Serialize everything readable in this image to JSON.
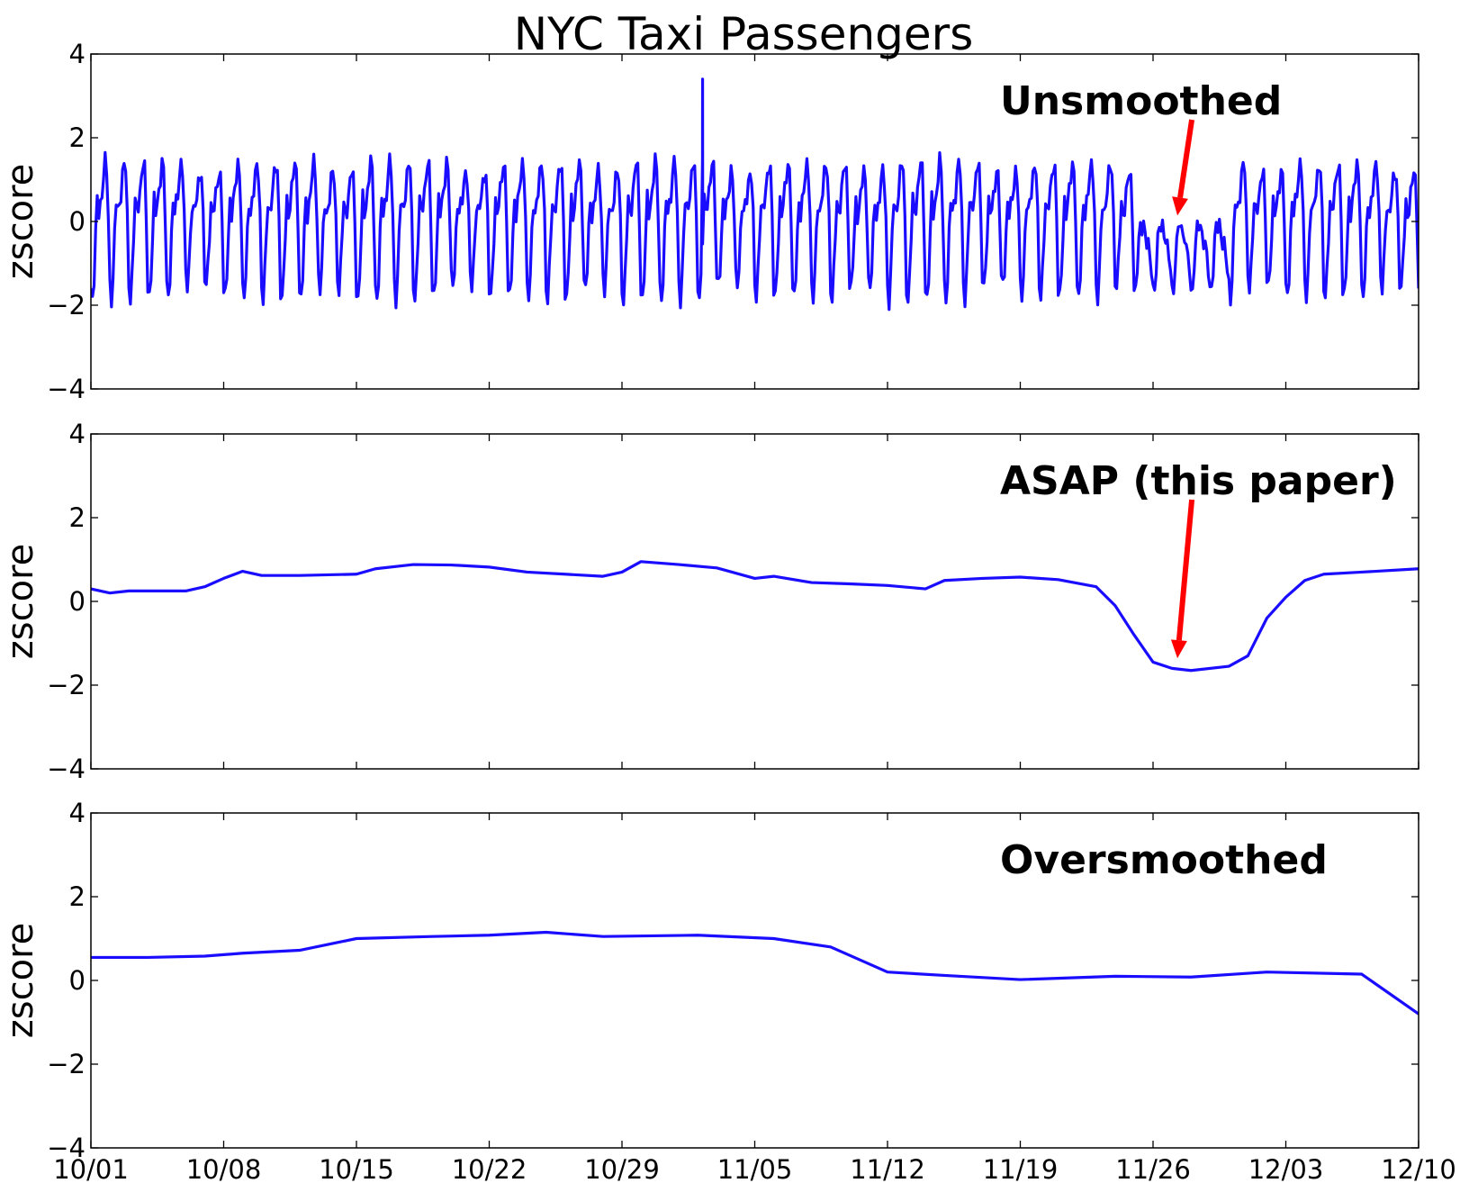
{
  "chart_data": {
    "type": "line",
    "title": "NYC Taxi Passengers",
    "x_ticks": [
      "10/01",
      "10/08",
      "10/15",
      "10/22",
      "10/29",
      "11/05",
      "11/12",
      "11/19",
      "11/26",
      "12/03",
      "12/10"
    ],
    "x_range": [
      "10/01",
      "12/10"
    ],
    "y_range": [
      -4,
      4
    ],
    "y_ticks": [
      "4",
      "2",
      "0",
      "−2",
      "−4"
    ],
    "colors": {
      "line": "#1a0dff",
      "arrow": "#ff0000"
    },
    "grid": false,
    "panels": [
      {
        "ylabel": "zscore",
        "annotation": "Unsmoothed",
        "arrow_target": {
          "x": "11/27",
          "y": 0.1
        },
        "series": {
          "kind": "daily-cycle",
          "x_start": "10/01",
          "x_end": "12/10",
          "points_per_day": 12,
          "daily_profile": [
            -1.6,
            -1.85,
            -1.3,
            -0.3,
            0.5,
            0.2,
            0.4,
            0.7,
            1.1,
            1.4,
            1.2,
            0.1
          ],
          "spike": {
            "x": "11/02 06:00",
            "y": 3.4
          },
          "dip_window": [
            "11/25",
            "11/30"
          ],
          "dip_values": [
            -1.55,
            -1.6,
            -1.2,
            -0.4,
            -0.1,
            -0.2,
            0.0,
            -0.3,
            -0.6,
            -0.5,
            -0.8,
            -1.2
          ]
        }
      },
      {
        "ylabel": "zscore",
        "annotation": "ASAP (this paper)",
        "arrow_target": {
          "x": "11/27",
          "y": -1.4
        },
        "series": {
          "kind": "smooth",
          "keypoints": [
            [
              "10/01",
              0.3
            ],
            [
              "10/02",
              0.2
            ],
            [
              "10/03",
              0.25
            ],
            [
              "10/06",
              0.25
            ],
            [
              "10/07",
              0.35
            ],
            [
              "10/08",
              0.55
            ],
            [
              "10/09",
              0.72
            ],
            [
              "10/10",
              0.62
            ],
            [
              "10/12",
              0.62
            ],
            [
              "10/15",
              0.65
            ],
            [
              "10/16",
              0.78
            ],
            [
              "10/18",
              0.88
            ],
            [
              "10/20",
              0.87
            ],
            [
              "10/22",
              0.82
            ],
            [
              "10/24",
              0.7
            ],
            [
              "10/26",
              0.65
            ],
            [
              "10/28",
              0.6
            ],
            [
              "10/29",
              0.7
            ],
            [
              "10/30",
              0.95
            ],
            [
              "11/01",
              0.88
            ],
            [
              "11/03",
              0.8
            ],
            [
              "11/05",
              0.55
            ],
            [
              "11/06",
              0.6
            ],
            [
              "11/08",
              0.45
            ],
            [
              "11/10",
              0.42
            ],
            [
              "11/12",
              0.38
            ],
            [
              "11/14",
              0.3
            ],
            [
              "11/15",
              0.5
            ],
            [
              "11/17",
              0.55
            ],
            [
              "11/19",
              0.58
            ],
            [
              "11/21",
              0.52
            ],
            [
              "11/23",
              0.35
            ],
            [
              "11/24",
              -0.1
            ],
            [
              "11/25",
              -0.8
            ],
            [
              "11/26",
              -1.45
            ],
            [
              "11/27",
              -1.6
            ],
            [
              "11/28",
              -1.65
            ],
            [
              "11/30",
              -1.55
            ],
            [
              "12/01",
              -1.3
            ],
            [
              "12/02",
              -0.4
            ],
            [
              "12/03",
              0.1
            ],
            [
              "12/04",
              0.5
            ],
            [
              "12/05",
              0.65
            ],
            [
              "12/07",
              0.7
            ],
            [
              "12/10",
              0.78
            ]
          ]
        }
      },
      {
        "ylabel": "zscore",
        "annotation": "Oversmoothed",
        "series": {
          "kind": "smooth",
          "keypoints": [
            [
              "10/01",
              0.55
            ],
            [
              "10/04",
              0.55
            ],
            [
              "10/07",
              0.58
            ],
            [
              "10/09",
              0.65
            ],
            [
              "10/12",
              0.72
            ],
            [
              "10/15",
              1.0
            ],
            [
              "10/19",
              1.05
            ],
            [
              "10/22",
              1.08
            ],
            [
              "10/25",
              1.15
            ],
            [
              "10/28",
              1.05
            ],
            [
              "11/02",
              1.08
            ],
            [
              "11/06",
              1.0
            ],
            [
              "11/09",
              0.8
            ],
            [
              "11/12",
              0.2
            ],
            [
              "11/15",
              0.12
            ],
            [
              "11/19",
              0.02
            ],
            [
              "11/24",
              0.1
            ],
            [
              "11/28",
              0.08
            ],
            [
              "12/02",
              0.2
            ],
            [
              "12/07",
              0.15
            ],
            [
              "12/10",
              -0.8
            ]
          ]
        }
      }
    ]
  }
}
